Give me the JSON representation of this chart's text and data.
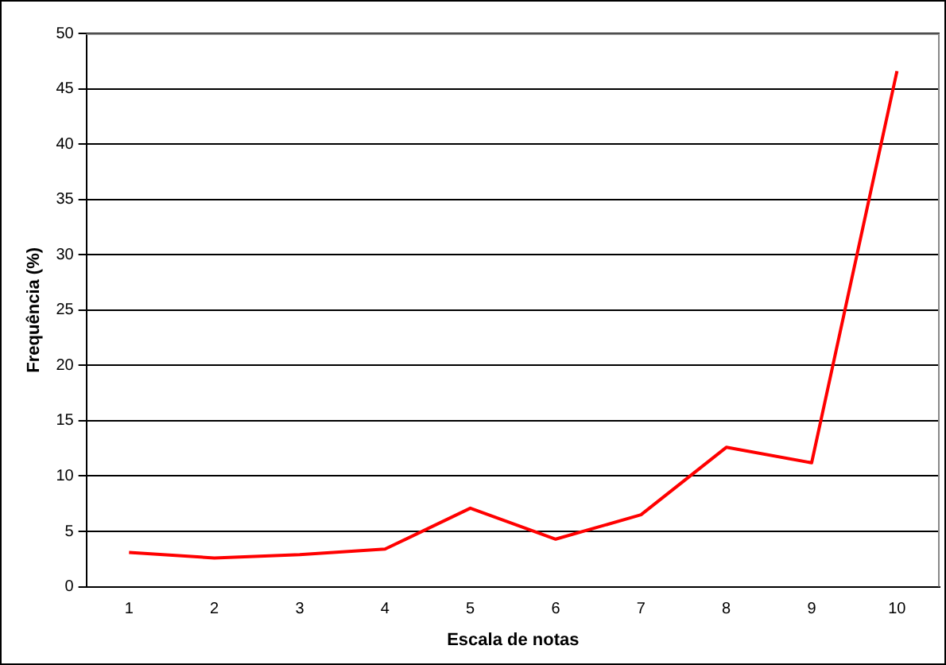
{
  "chart_data": {
    "type": "line",
    "xlabel": "Escala de notas",
    "ylabel": "Frequência (%)",
    "categories": [
      "1",
      "2",
      "3",
      "4",
      "5",
      "6",
      "7",
      "8",
      "9",
      "10"
    ],
    "series": [
      {
        "color": "#ff0000",
        "values": [
          3.1,
          2.6,
          2.9,
          3.4,
          7.1,
          4.3,
          6.5,
          12.6,
          11.2,
          46.6
        ]
      }
    ],
    "ylim": [
      0,
      50
    ],
    "yticks": [
      0,
      5,
      10,
      15,
      20,
      25,
      30,
      35,
      40,
      45,
      50
    ],
    "grid": "y",
    "legend": false,
    "marker": "none"
  }
}
